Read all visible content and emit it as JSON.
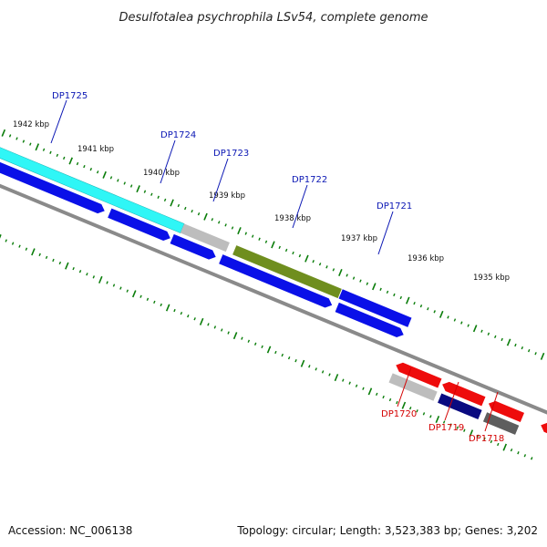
{
  "title": "Desulfotalea psychrophila LSv54, complete genome",
  "footer": {
    "accession": "Accession: NC_006138",
    "summary": "Topology: circular; Length: 3,523,383 bp; Genes: 3,202"
  },
  "scale_labels": [
    "1942 kbp",
    "1941 kbp",
    "1940 kbp",
    "1939 kbp",
    "1938 kbp",
    "1937 kbp",
    "1936 kbp",
    "1935 kbp"
  ],
  "gene_labels": [
    {
      "text": "DP1725",
      "color": "#0b17b4"
    },
    {
      "text": "DP1724",
      "color": "#0b17b4"
    },
    {
      "text": "DP1723",
      "color": "#0b17b4"
    },
    {
      "text": "DP1722",
      "color": "#0b17b4"
    },
    {
      "text": "DP1721",
      "color": "#0b17b4"
    },
    {
      "text": "DP1720",
      "color": "#d40000"
    },
    {
      "text": "DP1719",
      "color": "#d40000"
    },
    {
      "text": "DP1718",
      "color": "#d40000"
    }
  ],
  "colors": {
    "forward_cds": "#0a10e8",
    "reverse_cds": "#ee0c0c",
    "highlight_cyan": "#2ff6f6",
    "olive": "#6f8e1e",
    "grey": "#bdbdbd",
    "dark_grey": "#5e5e5e",
    "navy": "#0a0a80",
    "backbone": "#8a8a8a",
    "ticks": "#0a7d0a"
  }
}
